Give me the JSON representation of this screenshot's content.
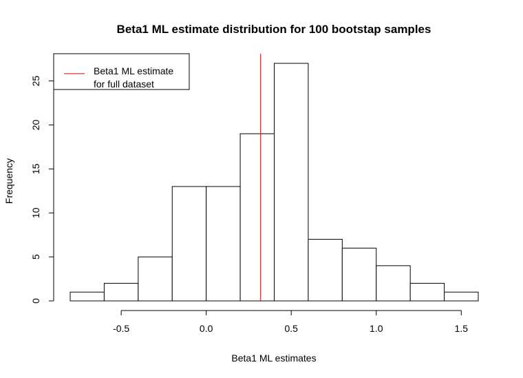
{
  "chart_data": {
    "type": "bar",
    "title": "Beta1 ML estimate distribution for 100 bootstap samples",
    "xlabel": "Beta1 ML estimates",
    "ylabel": "Frequency",
    "bin_edges": [
      -0.8,
      -0.6,
      -0.4,
      -0.2,
      0.0,
      0.2,
      0.4,
      0.6,
      0.8,
      1.0,
      1.2,
      1.4,
      1.6
    ],
    "values": [
      1,
      2,
      5,
      13,
      13,
      19,
      27,
      7,
      6,
      4,
      2,
      1
    ],
    "xlim": [
      -0.8,
      1.6
    ],
    "ylim": [
      0,
      27
    ],
    "x_ticks": [
      -0.5,
      0.0,
      0.5,
      1.0,
      1.5
    ],
    "x_tick_labels": [
      "-0.5",
      "0.0",
      "0.5",
      "1.0",
      "1.5"
    ],
    "y_ticks": [
      0,
      5,
      10,
      15,
      20,
      25
    ],
    "y_tick_labels": [
      "0",
      "5",
      "10",
      "15",
      "20",
      "25"
    ],
    "reference_line": {
      "x": 0.32,
      "color": "#cc0000",
      "label_lines": [
        "Beta1 ML estimate",
        "for full dataset"
      ]
    },
    "legend_position": "top-left",
    "bar_fill": "#ffffff",
    "bar_stroke": "#000000",
    "grid": false
  }
}
